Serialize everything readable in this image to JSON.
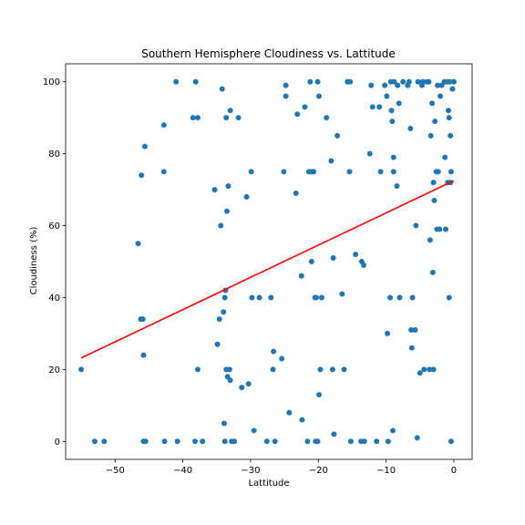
{
  "chart_data": {
    "type": "scatter",
    "title": "Southern Hemisphere Cloudiness vs. Lattitude",
    "xlabel": "Lattitude",
    "ylabel": "Cloudiness (%)",
    "xlim": [
      -57.3,
      2.7
    ],
    "ylim": [
      -5,
      105
    ],
    "xticks": [
      -50,
      -40,
      -30,
      -20,
      -10,
      0
    ],
    "xtick_labels": [
      "−50",
      "−40",
      "−30",
      "−20",
      "−10",
      "0"
    ],
    "yticks": [
      0,
      20,
      40,
      60,
      80,
      100
    ],
    "ytick_labels": [
      "0",
      "20",
      "40",
      "60",
      "80",
      "100"
    ],
    "grid": false,
    "colors": {
      "points": "#1f77b4",
      "regression": "#ff0000"
    },
    "regression_line": {
      "x": [
        -55,
        0
      ],
      "y": [
        23.2,
        72.5
      ]
    },
    "points": [
      [
        -55,
        20
      ],
      [
        -53,
        0
      ],
      [
        -51.6,
        0
      ],
      [
        -46.6,
        55
      ],
      [
        -46.1,
        74
      ],
      [
        -46.2,
        34
      ],
      [
        -45.9,
        34
      ],
      [
        -45.6,
        82
      ],
      [
        -45.8,
        24
      ],
      [
        -45.8,
        0
      ],
      [
        -45.5,
        0
      ],
      [
        -42.8,
        88
      ],
      [
        -42.8,
        75
      ],
      [
        -42.7,
        0
      ],
      [
        -41,
        100
      ],
      [
        -40.8,
        0
      ],
      [
        -38.5,
        90
      ],
      [
        -38.1,
        100
      ],
      [
        -37.8,
        90
      ],
      [
        -37.8,
        20
      ],
      [
        -38.2,
        0
      ],
      [
        -37.1,
        0
      ],
      [
        -35.3,
        70
      ],
      [
        -34.9,
        27
      ],
      [
        -34.6,
        34
      ],
      [
        -34.4,
        60
      ],
      [
        -34.2,
        98
      ],
      [
        -34,
        36
      ],
      [
        -33.8,
        40
      ],
      [
        -33.7,
        42
      ],
      [
        -33.6,
        90
      ],
      [
        -33.5,
        64
      ],
      [
        -33.6,
        20
      ],
      [
        -33.4,
        18
      ],
      [
        -33.9,
        5
      ],
      [
        -33.8,
        0
      ],
      [
        -33.3,
        71
      ],
      [
        -33,
        92
      ],
      [
        -33.1,
        20
      ],
      [
        -33,
        17
      ],
      [
        -32.8,
        0
      ],
      [
        -32.4,
        0
      ],
      [
        -31.8,
        90
      ],
      [
        -31.3,
        15
      ],
      [
        -30.6,
        68
      ],
      [
        -30.3,
        16
      ],
      [
        -29.9,
        75
      ],
      [
        -29.8,
        40
      ],
      [
        -29.5,
        3
      ],
      [
        -28.7,
        40
      ],
      [
        -27.6,
        0
      ],
      [
        -27,
        40
      ],
      [
        -26.7,
        20
      ],
      [
        -26.6,
        25
      ],
      [
        -26.4,
        0
      ],
      [
        -25.1,
        75
      ],
      [
        -25.4,
        23
      ],
      [
        -24.8,
        99
      ],
      [
        -24.8,
        96
      ],
      [
        -24.3,
        8
      ],
      [
        -23.3,
        69
      ],
      [
        -23.1,
        91
      ],
      [
        -22.5,
        46
      ],
      [
        -22.4,
        6
      ],
      [
        -22,
        93
      ],
      [
        -21.6,
        0
      ],
      [
        -21.4,
        75
      ],
      [
        -21.2,
        100
      ],
      [
        -21,
        75
      ],
      [
        -21,
        50
      ],
      [
        -20.7,
        75
      ],
      [
        -20.5,
        40
      ],
      [
        -20.4,
        0
      ],
      [
        -20.3,
        40
      ],
      [
        -20.1,
        0
      ],
      [
        -20.1,
        100
      ],
      [
        -19.9,
        96
      ],
      [
        -19.9,
        13
      ],
      [
        -19.7,
        20
      ],
      [
        -19.5,
        40
      ],
      [
        -18.8,
        90
      ],
      [
        -18.1,
        78
      ],
      [
        -17.8,
        51
      ],
      [
        -17.9,
        20
      ],
      [
        -17.7,
        2
      ],
      [
        -17.2,
        85
      ],
      [
        -16.5,
        41
      ],
      [
        -16.2,
        20
      ],
      [
        -15.7,
        100
      ],
      [
        -15.3,
        100
      ],
      [
        -15.4,
        75
      ],
      [
        -15.2,
        0
      ],
      [
        -14.5,
        52
      ],
      [
        -13.7,
        0
      ],
      [
        -13.6,
        50
      ],
      [
        -13.3,
        49
      ],
      [
        -13.2,
        0
      ],
      [
        -12.4,
        80
      ],
      [
        -12.2,
        99
      ],
      [
        -12,
        93
      ],
      [
        -11.4,
        0
      ],
      [
        -11,
        93
      ],
      [
        -10.8,
        75
      ],
      [
        -10.2,
        99
      ],
      [
        -9.9,
        96
      ],
      [
        -9.8,
        30
      ],
      [
        -9.7,
        0
      ],
      [
        -9.4,
        40
      ],
      [
        -9.3,
        100
      ],
      [
        -9.2,
        92
      ],
      [
        -9.1,
        89
      ],
      [
        -8.9,
        75
      ],
      [
        -9,
        3
      ],
      [
        -8.9,
        79
      ],
      [
        -8.8,
        100
      ],
      [
        -8.4,
        71
      ],
      [
        -8.3,
        99
      ],
      [
        -8.1,
        94
      ],
      [
        -8,
        40
      ],
      [
        -7.5,
        100
      ],
      [
        -6.8,
        99
      ],
      [
        -6.6,
        100
      ],
      [
        -6.4,
        87
      ],
      [
        -6.3,
        31
      ],
      [
        -6.2,
        26
      ],
      [
        -6.1,
        40
      ],
      [
        -5.7,
        31
      ],
      [
        -5.6,
        60
      ],
      [
        -5.4,
        1
      ],
      [
        -5.3,
        100
      ],
      [
        -5,
        19
      ],
      [
        -4.7,
        99
      ],
      [
        -4.6,
        100
      ],
      [
        -4.4,
        20
      ],
      [
        -4,
        100
      ],
      [
        -3.7,
        100
      ],
      [
        -3.6,
        20
      ],
      [
        -3.4,
        85
      ],
      [
        -3.5,
        56
      ],
      [
        -3.2,
        94
      ],
      [
        -3.1,
        47
      ],
      [
        -3,
        20
      ],
      [
        -3,
        72
      ],
      [
        -2.9,
        67
      ],
      [
        -2.8,
        89
      ],
      [
        -2.6,
        75
      ],
      [
        -2.5,
        59
      ],
      [
        -2.4,
        99
      ],
      [
        -2.3,
        75
      ],
      [
        -2.1,
        59
      ],
      [
        -2,
        96
      ],
      [
        -1.8,
        99
      ],
      [
        -1.4,
        100
      ],
      [
        -1.3,
        79
      ],
      [
        -1.2,
        59
      ],
      [
        -1,
        100
      ],
      [
        -0.9,
        72
      ],
      [
        -0.8,
        92
      ],
      [
        -0.7,
        90
      ],
      [
        -0.7,
        40
      ],
      [
        -0.6,
        100
      ],
      [
        -0.5,
        85
      ],
      [
        -0.5,
        72
      ],
      [
        -0.4,
        75
      ],
      [
        -0.4,
        0
      ],
      [
        -0.2,
        98
      ],
      [
        0,
        100
      ]
    ]
  }
}
